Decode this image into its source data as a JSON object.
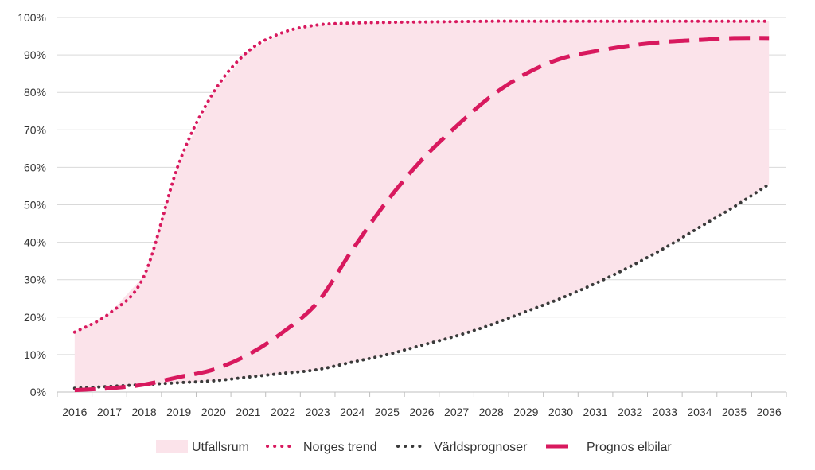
{
  "chart_data": {
    "type": "area",
    "title": "",
    "xlabel": "",
    "ylabel": "",
    "x": [
      "2016",
      "2017",
      "2018",
      "2019",
      "2020",
      "2021",
      "2022",
      "2023",
      "2024",
      "2025",
      "2026",
      "2027",
      "2028",
      "2029",
      "2030",
      "2031",
      "2032",
      "2033",
      "2034",
      "2035",
      "2036"
    ],
    "ylim": [
      0,
      100
    ],
    "yticks": [
      "0%",
      "10%",
      "20%",
      "30%",
      "40%",
      "50%",
      "60%",
      "70%",
      "80%",
      "90%",
      "100%"
    ],
    "grid": true,
    "legend_position": "bottom",
    "series": [
      {
        "name": "Norges trend",
        "style": "dotted",
        "color": "#d8195e",
        "values": [
          16,
          21,
          31,
          61,
          80,
          91,
          96,
          98,
          98.5,
          98.7,
          98.8,
          98.9,
          99,
          99,
          99,
          99,
          99,
          99,
          99,
          99,
          99
        ]
      },
      {
        "name": "Världsprognoser",
        "style": "dotted",
        "color": "#3a3a3a",
        "values": [
          1,
          1.5,
          2,
          2.5,
          3,
          4,
          5,
          6,
          8,
          10,
          12.5,
          15,
          18,
          21.5,
          25,
          29,
          33.5,
          38.5,
          44,
          49.5,
          55.5
        ]
      },
      {
        "name": "Prognos elbilar",
        "style": "dashed",
        "color": "#d8195e",
        "values": [
          0.5,
          1,
          2,
          4,
          6,
          10,
          16,
          24,
          38,
          51,
          62,
          71,
          79,
          85,
          89,
          91,
          92.5,
          93.5,
          94,
          94.5,
          94.5
        ]
      }
    ],
    "band": {
      "name": "Utfallsrum",
      "color": "#fbe3ea",
      "lower_series": "Världsprognoser",
      "upper_series": "Norges trend"
    }
  },
  "legend": {
    "items": [
      {
        "label": "Utfallsrum",
        "kind": "band",
        "color": "#fbe3ea"
      },
      {
        "label": "Norges trend",
        "kind": "dotted",
        "color": "#d8195e"
      },
      {
        "label": "Världsprognoser",
        "kind": "dotted",
        "color": "#3a3a3a"
      },
      {
        "label": "Prognos elbilar",
        "kind": "dashed",
        "color": "#d8195e"
      }
    ]
  },
  "colors": {
    "grid": "#d9d9d9",
    "axis": "#bfbfbf"
  }
}
